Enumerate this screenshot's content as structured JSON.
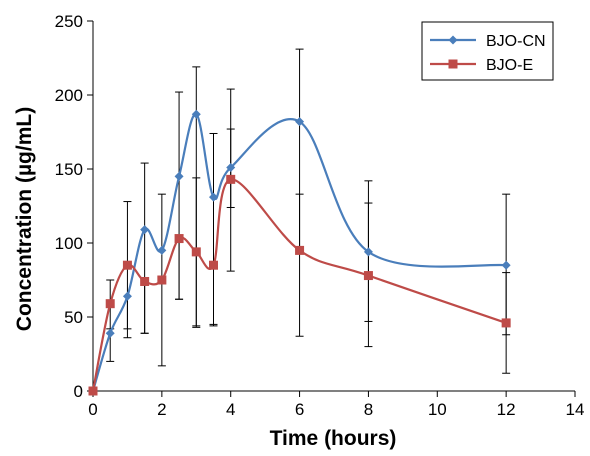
{
  "chart_data": {
    "type": "line",
    "title": "",
    "xlabel": "Time (hours)",
    "ylabel": "Concentration (µg/mL)",
    "xlim": [
      0,
      14
    ],
    "ylim": [
      0,
      250
    ],
    "xticks": [
      0,
      2,
      4,
      6,
      8,
      10,
      12,
      14
    ],
    "yticks": [
      0,
      50,
      100,
      150,
      200,
      250
    ],
    "x_tick_labels": [
      "0",
      "2",
      "4",
      "6",
      "8",
      "10",
      "12",
      "14"
    ],
    "y_tick_labels": [
      "0",
      "50",
      "100",
      "150",
      "200",
      "250"
    ],
    "grid": false,
    "smooth": true,
    "legend_position": "top-right",
    "series": [
      {
        "name": "BJO-CN",
        "color": "#4a7ebb",
        "marker": "diamond",
        "x": [
          0,
          0.5,
          1,
          1.5,
          2,
          2.5,
          3,
          3.5,
          4,
          6,
          8,
          12
        ],
        "y": [
          0,
          39,
          64,
          109,
          95,
          145,
          187,
          131,
          151,
          182,
          94,
          85
        ],
        "error_low": [
          0,
          19,
          28,
          70,
          78,
          83,
          143,
          87,
          27,
          145,
          47,
          47
        ],
        "error_high": [
          0,
          0,
          0,
          45,
          38,
          57,
          32,
          43,
          53,
          49,
          48,
          48
        ]
      },
      {
        "name": "BJO-E",
        "color": "#be4b48",
        "marker": "square",
        "x": [
          0,
          0.5,
          1,
          1.5,
          2,
          2.5,
          3,
          3.5,
          4,
          6,
          8,
          12
        ],
        "y": [
          0,
          59,
          85,
          74,
          75,
          103,
          94,
          85,
          143,
          95,
          78,
          46
        ],
        "error_low": [
          0,
          17,
          43,
          35,
          0,
          41,
          51,
          40,
          62,
          0,
          48,
          34
        ],
        "error_high": [
          0,
          16,
          43,
          0,
          0,
          0,
          50,
          0,
          34,
          38,
          49,
          34
        ]
      }
    ]
  }
}
